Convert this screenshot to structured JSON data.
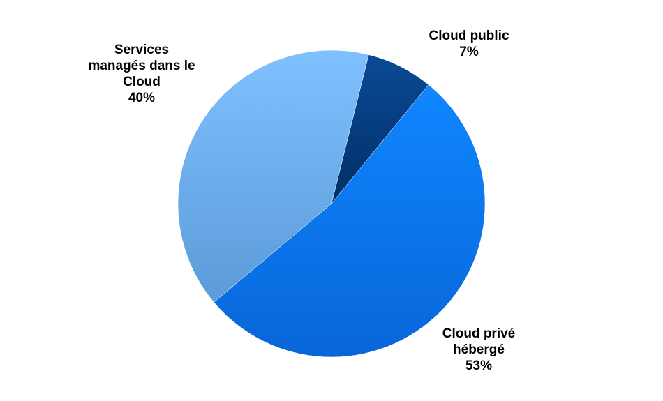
{
  "chart_data": {
    "type": "pie",
    "title": "",
    "slices": [
      {
        "label_lines": [
          "Cloud public"
        ],
        "value": 7,
        "value_label": "7%",
        "color": "#003d80",
        "label_anchor": "middle"
      },
      {
        "label_lines": [
          "Cloud privé",
          "hébergé"
        ],
        "value": 53,
        "value_label": "53%",
        "color": "#0a78f2",
        "label_anchor": "middle"
      },
      {
        "label_lines": [
          "Services",
          "managés dans le",
          "Cloud"
        ],
        "value": 40,
        "value_label": "40%",
        "color": "#6fb1ee",
        "label_anchor": "middle"
      }
    ],
    "start_angle_deg": 14,
    "direction": "clockwise",
    "legend": "none",
    "labels_outside": true
  }
}
